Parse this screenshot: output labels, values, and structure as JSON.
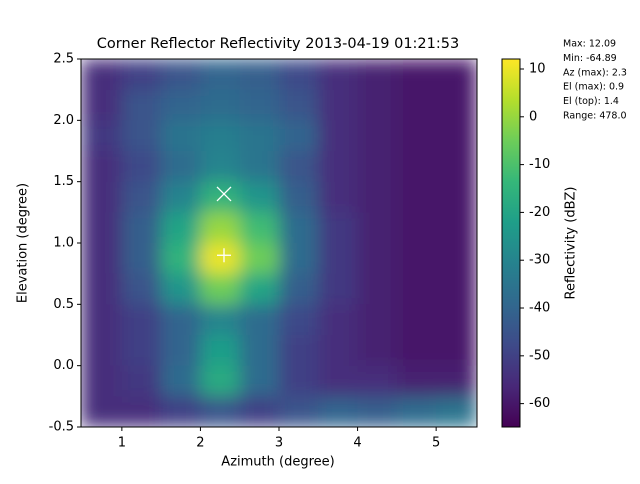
{
  "chart_data": {
    "type": "heatmap",
    "title": "Corner Reflector Reflectivity 2013-04-19 01:21:53",
    "x_label": "Azimuth (degree)",
    "y_label": "Elevation (degree)",
    "colorbar_label": "Reflectivity (dBZ)",
    "colormap": "viridis",
    "x": [
      0.5,
      1.0,
      1.5,
      2.0,
      2.5,
      3.0,
      3.5,
      4.0,
      4.5,
      5.0,
      5.5
    ],
    "y": [
      2.5,
      2.25,
      2.0,
      1.75,
      1.5,
      1.25,
      1.0,
      0.75,
      0.5,
      0.25,
      0.0,
      -0.25,
      -0.5
    ],
    "z": [
      [
        -55,
        -50,
        -45,
        -40,
        -42,
        -48,
        -55,
        -58,
        -60,
        -60
      ],
      [
        -55,
        -45,
        -40,
        -38,
        -40,
        -45,
        -55,
        -58,
        -60,
        -60
      ],
      [
        -52,
        -45,
        -35,
        -32,
        -35,
        -40,
        -55,
        -58,
        -60,
        -60
      ],
      [
        -55,
        -48,
        -38,
        -30,
        -35,
        -45,
        -55,
        -58,
        -60,
        -60
      ],
      [
        -55,
        -45,
        -30,
        -15,
        -25,
        -42,
        -55,
        -58,
        -60,
        -60
      ],
      [
        -55,
        -42,
        -20,
        0,
        -12,
        -38,
        -52,
        -58,
        -60,
        -60
      ],
      [
        -55,
        -42,
        -15,
        10,
        -5,
        -38,
        -52,
        -58,
        -60,
        -60
      ],
      [
        -55,
        -45,
        -25,
        -5,
        -20,
        -42,
        -52,
        -58,
        -60,
        -60
      ],
      [
        -55,
        -50,
        -40,
        -30,
        -38,
        -48,
        -55,
        -58,
        -60,
        -60
      ],
      [
        -55,
        -50,
        -40,
        -22,
        -38,
        -50,
        -55,
        -58,
        -60,
        -60
      ],
      [
        -55,
        -52,
        -38,
        -18,
        -38,
        -50,
        -55,
        -55,
        -58,
        -58
      ],
      [
        -55,
        -55,
        -50,
        -45,
        -50,
        -45,
        -40,
        -42,
        -38,
        -35
      ]
    ],
    "clim": [
      -64.89,
      12.09
    ],
    "xlim": [
      0.48,
      5.52
    ],
    "xticks": [
      1,
      2,
      3,
      4,
      5
    ],
    "ylim": [
      -0.5,
      2.5
    ],
    "yticks": [
      -0.5,
      0.0,
      0.5,
      1.0,
      1.5,
      2.0,
      2.5
    ],
    "cticks": [
      -60,
      -50,
      -40,
      -30,
      -20,
      -10,
      0,
      10
    ],
    "markers": {
      "x": [
        2.3,
        2.3
      ],
      "y": [
        0.9,
        1.4
      ],
      "symbols": [
        "+",
        "x"
      ],
      "color": "#ffffff"
    },
    "annotations": [
      "Max: 12.09",
      "Min: -64.89",
      "Az (max): 2.3",
      "El (max): 0.9",
      "El (top): 1.4",
      "Range: 478.0"
    ]
  }
}
